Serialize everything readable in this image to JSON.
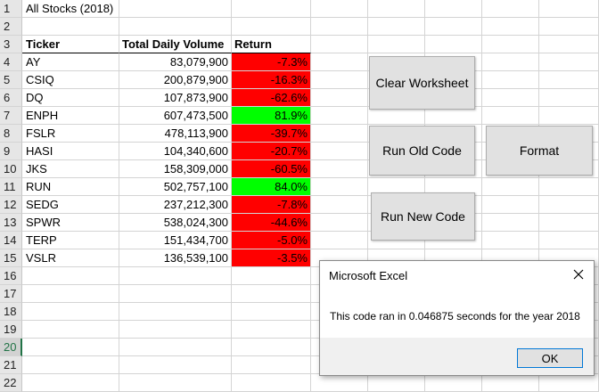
{
  "sheet": {
    "rows": [
      {
        "num": "1",
        "a": "All Stocks (2018)",
        "b": "",
        "c": "",
        "style": "title"
      },
      {
        "num": "2",
        "a": "",
        "b": "",
        "c": "",
        "style": "blank"
      },
      {
        "num": "3",
        "a": "Ticker",
        "b": "Total Daily Volume",
        "c": "Return",
        "style": "header"
      },
      {
        "num": "4",
        "a": "AY",
        "b": "83,079,900",
        "c": "-7.3%",
        "style": "red"
      },
      {
        "num": "5",
        "a": "CSIQ",
        "b": "200,879,900",
        "c": "-16.3%",
        "style": "red"
      },
      {
        "num": "6",
        "a": "DQ",
        "b": "107,873,900",
        "c": "-62.6%",
        "style": "red"
      },
      {
        "num": "7",
        "a": "ENPH",
        "b": "607,473,500",
        "c": "81.9%",
        "style": "green"
      },
      {
        "num": "8",
        "a": "FSLR",
        "b": "478,113,900",
        "c": "-39.7%",
        "style": "red"
      },
      {
        "num": "9",
        "a": "HASI",
        "b": "104,340,600",
        "c": "-20.7%",
        "style": "red"
      },
      {
        "num": "10",
        "a": "JKS",
        "b": "158,309,000",
        "c": "-60.5%",
        "style": "red"
      },
      {
        "num": "11",
        "a": "RUN",
        "b": "502,757,100",
        "c": "84.0%",
        "style": "green"
      },
      {
        "num": "12",
        "a": "SEDG",
        "b": "237,212,300",
        "c": "-7.8%",
        "style": "red"
      },
      {
        "num": "13",
        "a": "SPWR",
        "b": "538,024,300",
        "c": "-44.6%",
        "style": "red"
      },
      {
        "num": "14",
        "a": "TERP",
        "b": "151,434,700",
        "c": "-5.0%",
        "style": "red"
      },
      {
        "num": "15",
        "a": "VSLR",
        "b": "136,539,100",
        "c": "-3.5%",
        "style": "red"
      },
      {
        "num": "16",
        "a": "",
        "b": "",
        "c": "",
        "style": "blank"
      },
      {
        "num": "17",
        "a": "",
        "b": "",
        "c": "",
        "style": "blank"
      },
      {
        "num": "18",
        "a": "",
        "b": "",
        "c": "",
        "style": "blank"
      },
      {
        "num": "19",
        "a": "",
        "b": "",
        "c": "",
        "style": "blank"
      },
      {
        "num": "20",
        "a": "",
        "b": "",
        "c": "",
        "style": "blank"
      },
      {
        "num": "21",
        "a": "",
        "b": "",
        "c": "",
        "style": "blank"
      },
      {
        "num": "22",
        "a": "",
        "b": "",
        "c": "",
        "style": "blank"
      }
    ],
    "selected_row": "20"
  },
  "buttons": {
    "clear": "Clear Worksheet",
    "run_old": "Run Old Code",
    "format": "Format",
    "run_new": "Run New Code"
  },
  "dialog": {
    "title": "Microsoft Excel",
    "message": "This code ran in 0.046875 seconds for the year 2018",
    "ok": "OK",
    "close_icon": "close-icon"
  },
  "colors": {
    "negative": "#ff0000",
    "positive": "#00ff00",
    "selection_accent": "#217346",
    "dialog_button_border": "#0078d7"
  }
}
